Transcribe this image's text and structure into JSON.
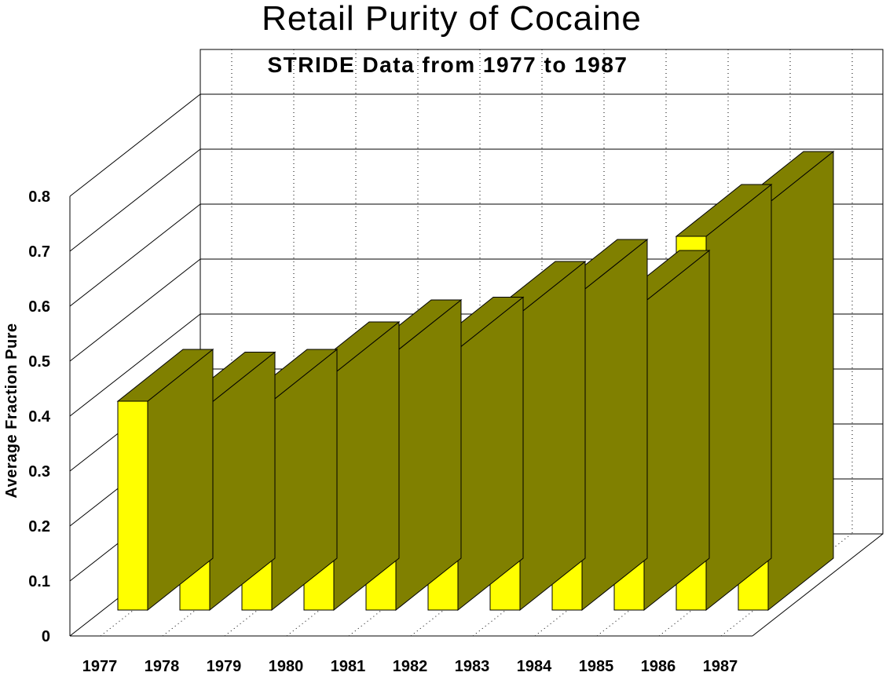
{
  "chart_data": {
    "type": "bar",
    "title": "Retail Purity of Cocaine",
    "subtitle": "STRIDE Data from 1977 to 1987",
    "xlabel": "",
    "ylabel": "Average Fraction Pure",
    "categories": [
      "1977",
      "1978",
      "1979",
      "1980",
      "1981",
      "1982",
      "1983",
      "1984",
      "1985",
      "1986",
      "1987"
    ],
    "values": [
      0.38,
      0.375,
      0.38,
      0.43,
      0.47,
      0.475,
      0.54,
      0.58,
      0.56,
      0.68,
      0.74
    ],
    "ylim": [
      0,
      0.8
    ],
    "yticks": [
      "0",
      "0.1",
      "0.2",
      "0.3",
      "0.4",
      "0.5",
      "0.6",
      "0.7",
      "0.8"
    ],
    "grid": true,
    "style": "3d",
    "colors": {
      "bar_front": "#ffff00",
      "bar_side": "#808000",
      "bar_top": "#808000"
    }
  }
}
